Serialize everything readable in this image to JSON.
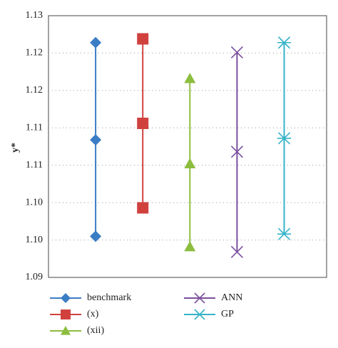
{
  "chart_data": {
    "type": "range-dot",
    "y_label": "y*",
    "ylim": [
      1.095,
      1.13
    ],
    "yticks": [
      {
        "value": 1.095,
        "label": "1.09"
      },
      {
        "value": 1.1,
        "label": "1.10"
      },
      {
        "value": 1.105,
        "label": "1.10"
      },
      {
        "value": 1.11,
        "label": "1.11"
      },
      {
        "value": 1.115,
        "label": "1.11"
      },
      {
        "value": 1.12,
        "label": "1.12"
      },
      {
        "value": 1.125,
        "label": "1.12"
      },
      {
        "value": 1.13,
        "label": "1.13"
      }
    ],
    "grid": true,
    "series": [
      {
        "name": "benchmark",
        "color": "#3b7dc4",
        "marker": "diamond",
        "values": [
          1.1264,
          1.1134,
          1.1005
        ]
      },
      {
        "name": "(x)",
        "color": "#d0413e",
        "marker": "square",
        "values": [
          1.1269,
          1.1156,
          1.1043
        ]
      },
      {
        "name": "(xii)",
        "color": "#8cbd3f",
        "marker": "triangle",
        "values": [
          1.1216,
          1.1102,
          1.0991
        ]
      },
      {
        "name": "ANN",
        "color": "#7b4f9e",
        "marker": "x",
        "values": [
          1.1251,
          1.1118,
          1.0984
        ]
      },
      {
        "name": "GP",
        "color": "#35b3c8",
        "marker": "star",
        "values": [
          1.1264,
          1.1136,
          1.1008
        ]
      }
    ]
  }
}
